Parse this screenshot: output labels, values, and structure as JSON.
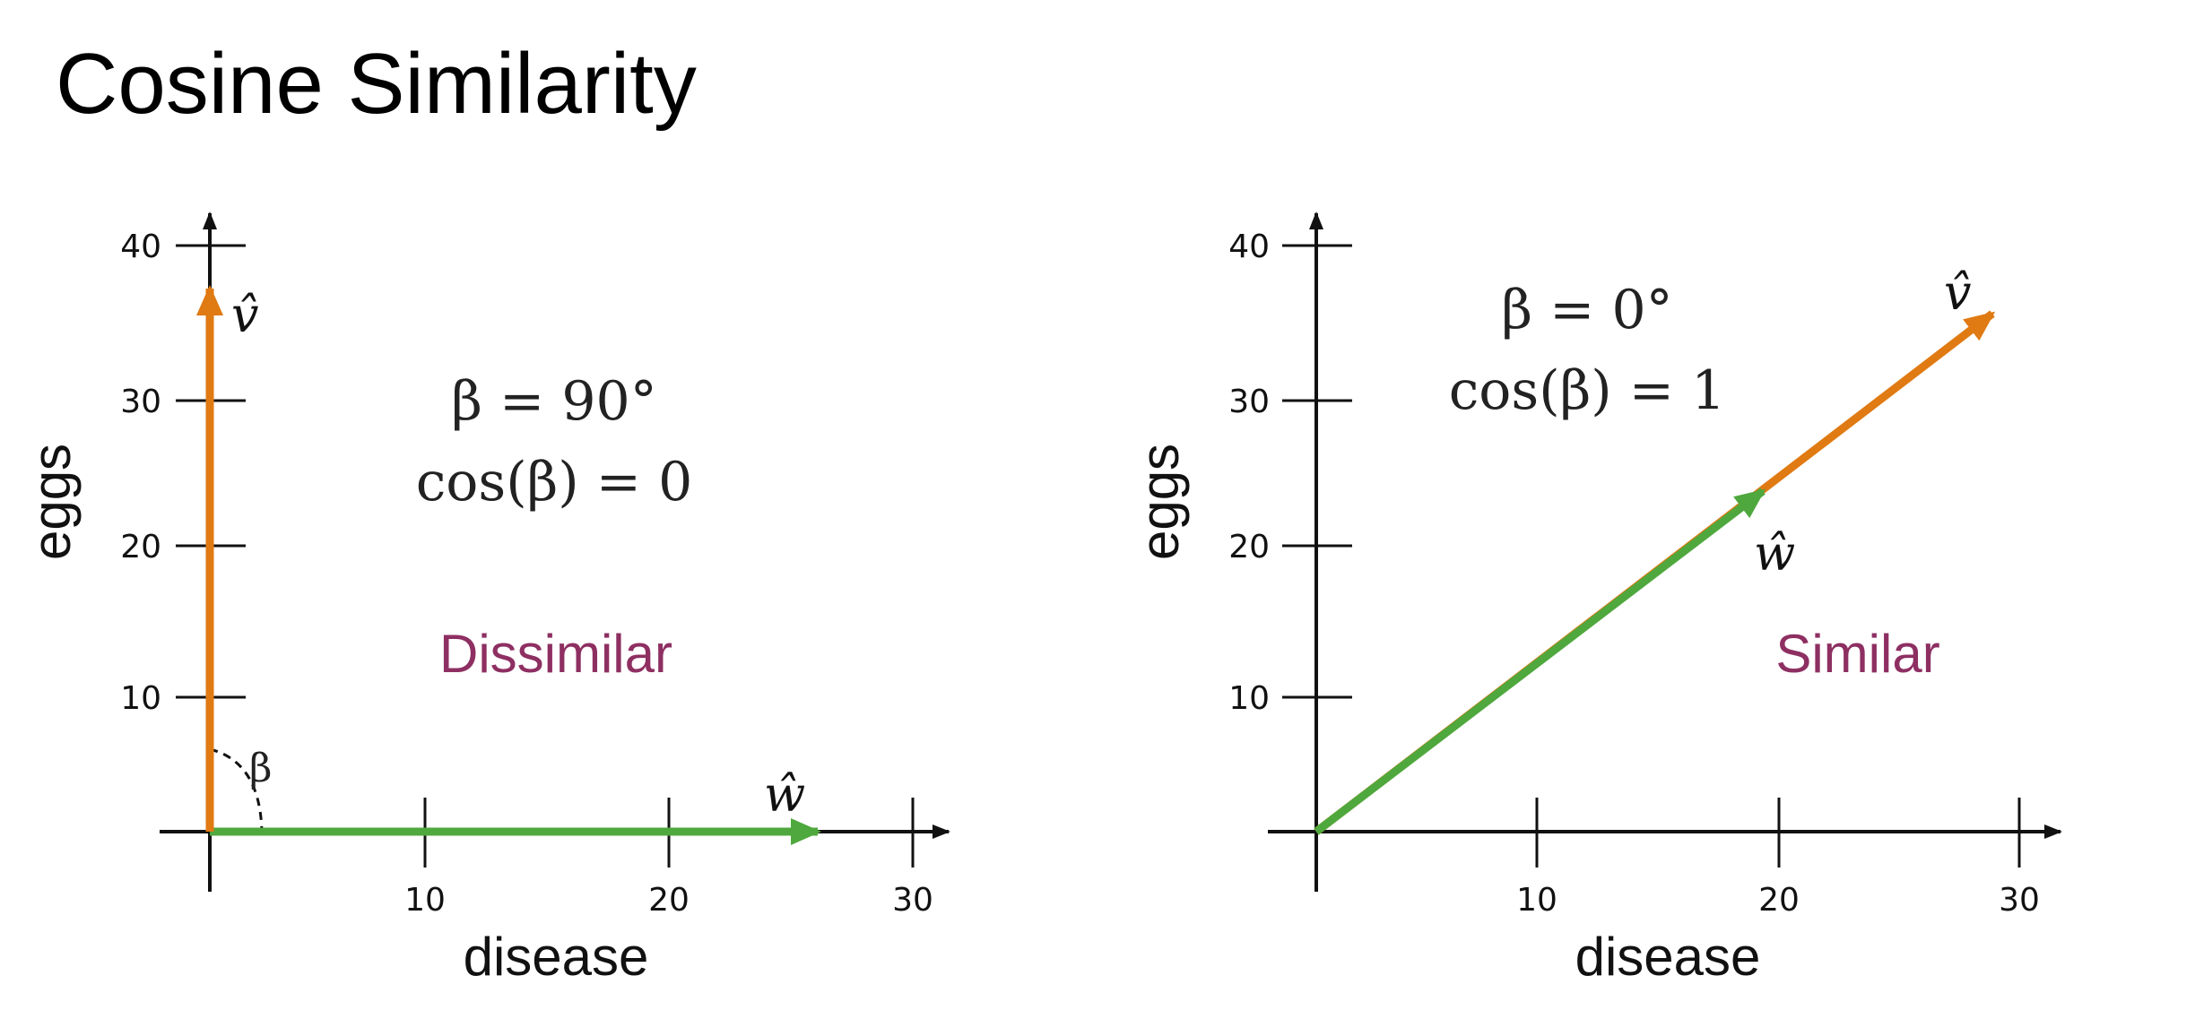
{
  "title": "Cosine Similarity",
  "colors": {
    "v_vector": "#E07A12",
    "w_vector": "#4FA83D",
    "verdict": "#8E2F62",
    "axis": "#111111"
  },
  "panels": [
    {
      "x_label": "disease",
      "y_label": "eggs",
      "x_ticks": [
        "10",
        "20",
        "30"
      ],
      "y_ticks": [
        "10",
        "20",
        "30",
        "40"
      ],
      "equation_1": "β = 90°",
      "equation_2": "cos(β) = 0",
      "verdict": "Dissimilar",
      "angle_label": "β",
      "v_label": "v̂",
      "w_label": "ŵ",
      "v": {
        "x": 0,
        "y": 37
      },
      "w": {
        "x": 25,
        "y": 0
      }
    },
    {
      "x_label": "disease",
      "y_label": "eggs",
      "x_ticks": [
        "10",
        "20",
        "30"
      ],
      "y_ticks": [
        "10",
        "20",
        "30",
        "40"
      ],
      "equation_1": "β = 0°",
      "equation_2": "cos(β) = 1",
      "verdict": "Similar",
      "v_label": "v̂",
      "w_label": "ŵ",
      "v": {
        "x": 28,
        "y": 35
      },
      "w": {
        "x": 18.5,
        "y": 23
      }
    }
  ]
}
